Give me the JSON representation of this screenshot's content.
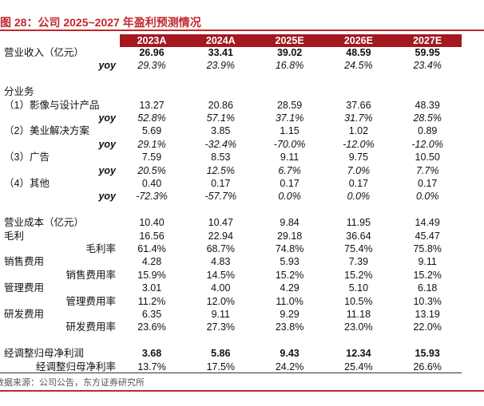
{
  "title": "图 28：公司 2025~2027 年盈利预测情况",
  "table": {
    "header": [
      "2023A",
      "2024A",
      "2025E",
      "2026E",
      "2027E"
    ],
    "rows": [
      {
        "label": "营业收入（亿元）",
        "values": [
          "26.96",
          "33.41",
          "39.02",
          "48.59",
          "59.95"
        ]
      },
      {
        "label": "yoy",
        "values": [
          "29.3%",
          "23.9%",
          "16.8%",
          "24.5%",
          "23.4%"
        ]
      },
      {
        "label": "分业务"
      },
      {
        "label": "（1）影像与设计产品",
        "values": [
          "13.27",
          "20.86",
          "28.59",
          "37.66",
          "48.39"
        ]
      },
      {
        "label": "yoy",
        "values": [
          "52.8%",
          "57.1%",
          "37.1%",
          "31.7%",
          "28.5%"
        ]
      },
      {
        "label": "（2）美业解决方案",
        "values": [
          "5.69",
          "3.85",
          "1.15",
          "1.02",
          "0.89"
        ]
      },
      {
        "label": "yoy",
        "values": [
          "29.1%",
          "-32.4%",
          "-70.0%",
          "-12.0%",
          "-12.0%"
        ]
      },
      {
        "label": "（3）广告",
        "values": [
          "7.59",
          "8.53",
          "9.11",
          "9.75",
          "10.50"
        ]
      },
      {
        "label": "yoy",
        "values": [
          "20.5%",
          "12.5%",
          "6.7%",
          "7.0%",
          "7.7%"
        ]
      },
      {
        "label": "（4）其他",
        "values": [
          "0.40",
          "0.17",
          "0.17",
          "0.17",
          "0.17"
        ]
      },
      {
        "label": "yoy",
        "values": [
          "-72.3%",
          "-57.7%",
          "0.0%",
          "0.0%",
          "0.0%"
        ]
      },
      {
        "label": "营业成本（亿元）",
        "values": [
          "10.40",
          "10.47",
          "9.84",
          "11.95",
          "14.49"
        ]
      },
      {
        "label": "毛利",
        "values": [
          "16.56",
          "22.94",
          "29.18",
          "36.64",
          "45.47"
        ]
      },
      {
        "label": "毛利率",
        "values": [
          "61.4%",
          "68.7%",
          "74.8%",
          "75.4%",
          "75.8%"
        ]
      },
      {
        "label": "销售费用",
        "values": [
          "4.28",
          "4.83",
          "5.93",
          "7.39",
          "9.11"
        ]
      },
      {
        "label": "销售费用率",
        "values": [
          "15.9%",
          "14.5%",
          "15.2%",
          "15.2%",
          "15.2%"
        ]
      },
      {
        "label": "管理费用",
        "values": [
          "3.01",
          "4.00",
          "4.29",
          "5.10",
          "6.18"
        ]
      },
      {
        "label": "管理费用率",
        "values": [
          "11.2%",
          "12.0%",
          "11.0%",
          "10.5%",
          "10.3%"
        ]
      },
      {
        "label": "研发费用",
        "values": [
          "6.35",
          "9.11",
          "9.29",
          "11.18",
          "13.19"
        ]
      },
      {
        "label": "研发费用率",
        "values": [
          "23.6%",
          "27.3%",
          "23.8%",
          "23.0%",
          "22.0%"
        ]
      },
      {
        "label": "经调整归母净利润",
        "values": [
          "3.68",
          "5.86",
          "9.43",
          "12.34",
          "15.93"
        ]
      },
      {
        "label": "经调整归母净利率",
        "values": [
          "13.7%",
          "17.5%",
          "24.2%",
          "25.4%",
          "26.6%"
        ]
      }
    ]
  },
  "source": "数据来源：公司公告，东方证券研究所"
}
